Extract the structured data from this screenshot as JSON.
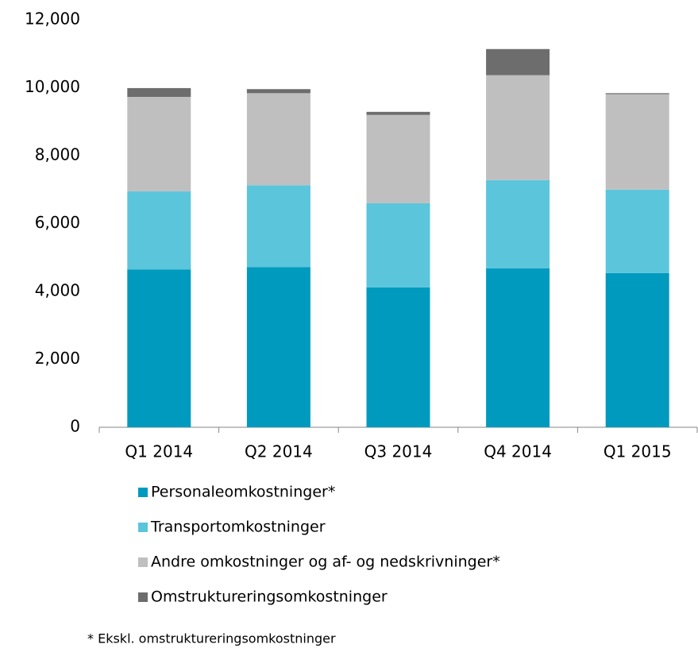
{
  "chart_data": {
    "type": "stacked_bar",
    "categories": [
      "Q1 2014",
      "Q2 2014",
      "Q3 2014",
      "Q4 2014",
      "Q1 2015"
    ],
    "series": [
      {
        "name": "Personaleomkostninger*",
        "color": "#009abf",
        "values": [
          4650,
          4720,
          4120,
          4680,
          4540
        ]
      },
      {
        "name": "Transportomkostninger",
        "color": "#5bc5dc",
        "values": [
          2300,
          2410,
          2480,
          2600,
          2460
        ]
      },
      {
        "name": "Andre omkostninger og af- og nedskrivninger*",
        "color": "#bfbfbf",
        "values": [
          2780,
          2710,
          2600,
          3090,
          2810
        ]
      },
      {
        "name": "Omstruktureringsomkostninger",
        "color": "#6d6d6d",
        "values": [
          260,
          120,
          90,
          770,
          30
        ]
      }
    ],
    "ylim": [
      0,
      12000
    ],
    "yticks": [
      0,
      {
        "value": 2000,
        "label": "2,000"
      },
      {
        "value": 4000,
        "label": "4,000"
      },
      {
        "value": 6000,
        "label": "6,000"
      },
      {
        "value": 8000,
        "label": "8,000"
      },
      {
        "value": 10000,
        "label": "10,000"
      },
      {
        "value": 12000,
        "label": "12,000"
      }
    ],
    "legend": "bottom",
    "footnote": "* Ekskl. omstruktureringsomkostninger"
  }
}
